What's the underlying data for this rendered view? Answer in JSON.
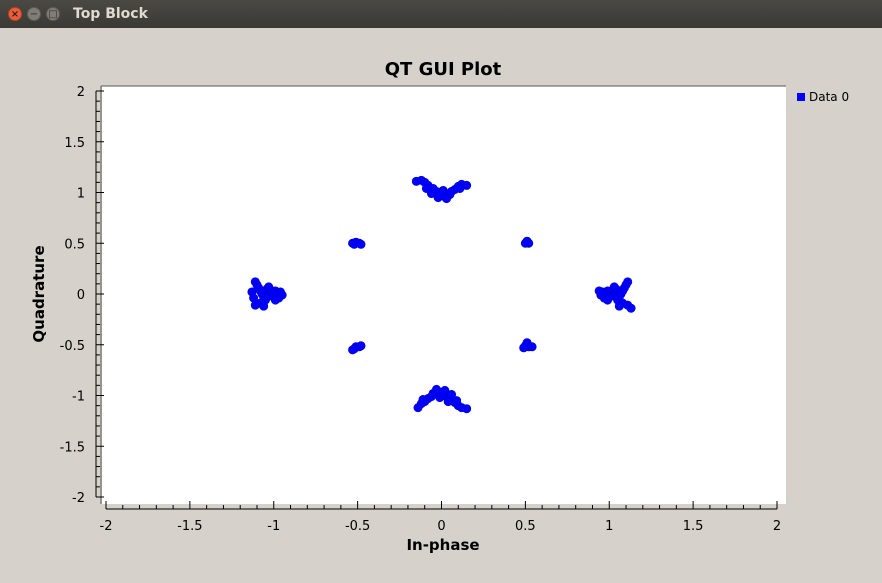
{
  "window": {
    "title": "Top Block",
    "close_glyph": "×",
    "minimize_glyph": "−",
    "maximize_glyph": "□"
  },
  "chart_data": {
    "type": "scatter",
    "title": "QT GUI Plot",
    "xlabel": "In-phase",
    "ylabel": "Quadrature",
    "xlim": [
      -2,
      2
    ],
    "ylim": [
      -2,
      2
    ],
    "x_ticks": [
      "-2",
      "-1.5",
      "-1",
      "-0.5",
      "0",
      "0.5",
      "1",
      "1.5",
      "2"
    ],
    "y_ticks": [
      "2",
      "1.5",
      "1",
      "0.5",
      "0",
      "-0.5",
      "-1",
      "-1.5",
      "-2"
    ],
    "grid": false,
    "legend_position": "right",
    "series": [
      {
        "name": "Data 0",
        "color": "#0000ff",
        "points": [
          [
            -1.11,
            0.12
          ],
          [
            -1.1,
            0.09
          ],
          [
            -1.09,
            0.06
          ],
          [
            -1.08,
            0.03
          ],
          [
            -1.07,
            0.0
          ],
          [
            -1.06,
            -0.03
          ],
          [
            -1.05,
            -0.06
          ],
          [
            -1.08,
            -0.09
          ],
          [
            -1.11,
            -0.11
          ],
          [
            -1.04,
            0.05
          ],
          [
            -1.03,
            -0.02
          ],
          [
            -1.02,
            0.04
          ],
          [
            -1.01,
            0.01
          ],
          [
            -1.0,
            -0.03
          ],
          [
            -0.99,
            0.03
          ],
          [
            -0.98,
            0.0
          ],
          [
            -0.97,
            -0.04
          ],
          [
            -0.96,
            0.02
          ],
          [
            -0.95,
            -0.01
          ],
          [
            -1.06,
            -0.12
          ],
          [
            -1.03,
            0.07
          ],
          [
            -0.99,
            -0.06
          ],
          [
            -1.13,
            0.02
          ],
          [
            -1.12,
            -0.04
          ],
          [
            1.11,
            0.12
          ],
          [
            1.1,
            0.09
          ],
          [
            1.09,
            0.06
          ],
          [
            1.08,
            0.03
          ],
          [
            1.07,
            0.0
          ],
          [
            1.06,
            -0.03
          ],
          [
            1.05,
            -0.06
          ],
          [
            1.08,
            -0.09
          ],
          [
            1.11,
            -0.11
          ],
          [
            1.13,
            -0.14
          ],
          [
            1.04,
            0.05
          ],
          [
            1.03,
            -0.02
          ],
          [
            1.02,
            0.04
          ],
          [
            1.01,
            0.01
          ],
          [
            1.0,
            -0.03
          ],
          [
            0.99,
            0.03
          ],
          [
            0.98,
            0.0
          ],
          [
            0.97,
            -0.04
          ],
          [
            0.96,
            0.02
          ],
          [
            0.95,
            -0.01
          ],
          [
            1.03,
            0.07
          ],
          [
            0.99,
            -0.06
          ],
          [
            1.06,
            -0.12
          ],
          [
            0.94,
            0.03
          ],
          [
            -0.15,
            1.11
          ],
          [
            -0.12,
            1.12
          ],
          [
            -0.1,
            1.1
          ],
          [
            -0.08,
            1.07
          ],
          [
            -0.05,
            1.04
          ],
          [
            -0.03,
            1.01
          ],
          [
            0.0,
            0.98
          ],
          [
            0.02,
            0.96
          ],
          [
            0.05,
            0.98
          ],
          [
            0.08,
            1.03
          ],
          [
            0.1,
            1.06
          ],
          [
            0.12,
            1.08
          ],
          [
            0.15,
            1.07
          ],
          [
            -0.02,
            0.95
          ],
          [
            0.03,
            0.94
          ],
          [
            -0.06,
            0.99
          ],
          [
            0.06,
            1.01
          ],
          [
            0.01,
            1.02
          ],
          [
            -0.01,
            0.97
          ],
          [
            -0.09,
            1.04
          ],
          [
            0.11,
            1.04
          ],
          [
            0.15,
            -1.13
          ],
          [
            0.12,
            -1.12
          ],
          [
            0.1,
            -1.1
          ],
          [
            0.08,
            -1.07
          ],
          [
            0.05,
            -1.04
          ],
          [
            0.03,
            -1.01
          ],
          [
            0.0,
            -0.98
          ],
          [
            -0.02,
            -0.96
          ],
          [
            -0.05,
            -0.98
          ],
          [
            -0.08,
            -1.03
          ],
          [
            -0.1,
            -1.06
          ],
          [
            -0.12,
            -1.08
          ],
          [
            -0.14,
            -1.12
          ],
          [
            0.02,
            -0.95
          ],
          [
            -0.03,
            -0.94
          ],
          [
            0.06,
            -0.99
          ],
          [
            -0.06,
            -1.01
          ],
          [
            -0.01,
            -1.02
          ],
          [
            0.01,
            -0.97
          ],
          [
            0.09,
            -1.05
          ],
          [
            -0.11,
            -1.04
          ],
          [
            0.04,
            -1.06
          ],
          [
            -0.53,
            0.5
          ],
          [
            -0.51,
            0.51
          ],
          [
            -0.49,
            0.5
          ],
          [
            -0.52,
            0.49
          ],
          [
            -0.48,
            0.49
          ],
          [
            0.51,
            0.52
          ],
          [
            0.52,
            0.5
          ],
          [
            0.5,
            0.5
          ],
          [
            -0.53,
            -0.55
          ],
          [
            -0.51,
            -0.52
          ],
          [
            -0.49,
            -0.52
          ],
          [
            -0.52,
            -0.54
          ],
          [
            -0.48,
            -0.51
          ],
          [
            0.51,
            -0.48
          ],
          [
            0.5,
            -0.51
          ],
          [
            0.52,
            -0.52
          ],
          [
            0.49,
            -0.53
          ],
          [
            0.54,
            -0.52
          ]
        ]
      }
    ]
  }
}
